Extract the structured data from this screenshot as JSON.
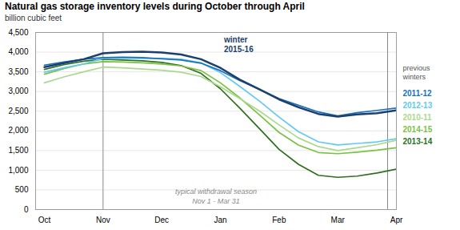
{
  "chart_data": {
    "type": "line",
    "title": "Natural gas storage inventory levels during October through April",
    "ylabel": "billion cubic feet",
    "x": [
      0,
      0.33,
      0.67,
      1.0,
      1.33,
      1.67,
      2.0,
      2.33,
      2.67,
      3.0,
      3.33,
      3.67,
      4.0,
      4.33,
      4.67,
      5.0,
      5.33,
      5.67,
      6.0
    ],
    "xlim": [
      -0.15,
      6.0
    ],
    "xticks": [
      {
        "value": 0,
        "label": "Oct"
      },
      {
        "value": 1,
        "label": "Nov"
      },
      {
        "value": 2,
        "label": "Dec"
      },
      {
        "value": 3,
        "label": "Jan"
      },
      {
        "value": 4,
        "label": "Feb"
      },
      {
        "value": 5,
        "label": "Mar"
      },
      {
        "value": 6,
        "label": "Apr"
      }
    ],
    "ylim": [
      0,
      4500
    ],
    "yticks": [
      0,
      500,
      {
        "value": 1000,
        "label": "1,000"
      },
      {
        "value": 1500,
        "label": "1,500"
      },
      {
        "value": 2000,
        "label": "2,000"
      },
      {
        "value": 2500,
        "label": "2,500"
      },
      {
        "value": 3000,
        "label": "3,000"
      },
      {
        "value": 3500,
        "label": "3,500"
      },
      {
        "value": 4000,
        "label": "4,000"
      },
      {
        "value": 4500,
        "label": "4,500"
      }
    ],
    "grid": true,
    "vlines": [
      1.0,
      5.85
    ],
    "annotations": [
      "typical withdrawal season\nNov 1 - Mar 31"
    ],
    "winter_label": "winter\n2015-16",
    "legend_title": "previous\nwinters",
    "legend_entries": [
      "2011-12",
      "2012-13",
      "2010-11",
      "2014-15",
      "2013-14"
    ],
    "series": [
      {
        "name": "2015-16",
        "color": "#1b3f6e",
        "values": [
          3620,
          3720,
          3820,
          3970,
          4000,
          4010,
          3990,
          3940,
          3820,
          3600,
          3300,
          3050,
          2800,
          2600,
          2430,
          2360,
          2420,
          2450,
          2520
        ]
      },
      {
        "name": "2011-12",
        "color": "#1a72b8",
        "values": [
          3670,
          3750,
          3820,
          3860,
          3870,
          3860,
          3830,
          3800,
          3720,
          3530,
          3280,
          3050,
          2820,
          2650,
          2480,
          2380,
          2460,
          2520,
          2580
        ]
      },
      {
        "name": "2012-13",
        "color": "#62c9f5",
        "values": [
          3490,
          3600,
          3700,
          3840,
          3850,
          3840,
          3840,
          3820,
          3730,
          3480,
          3130,
          2750,
          2350,
          1980,
          1720,
          1640,
          1680,
          1720,
          1800
        ]
      },
      {
        "name": "2010-11",
        "color": "#aad98c",
        "values": [
          3220,
          3370,
          3500,
          3620,
          3600,
          3570,
          3540,
          3490,
          3380,
          3120,
          2820,
          2500,
          2150,
          1820,
          1600,
          1500,
          1570,
          1650,
          1760
        ]
      },
      {
        "name": "2014-15",
        "color": "#7bc244",
        "values": [
          3440,
          3580,
          3700,
          3760,
          3750,
          3730,
          3700,
          3650,
          3530,
          3220,
          2840,
          2400,
          1960,
          1640,
          1450,
          1420,
          1460,
          1510,
          1570
        ]
      },
      {
        "name": "2013-14",
        "color": "#2d6e1f",
        "values": [
          3560,
          3680,
          3770,
          3820,
          3800,
          3780,
          3740,
          3660,
          3460,
          3070,
          2580,
          2050,
          1530,
          1150,
          870,
          820,
          850,
          930,
          1030
        ]
      }
    ]
  }
}
